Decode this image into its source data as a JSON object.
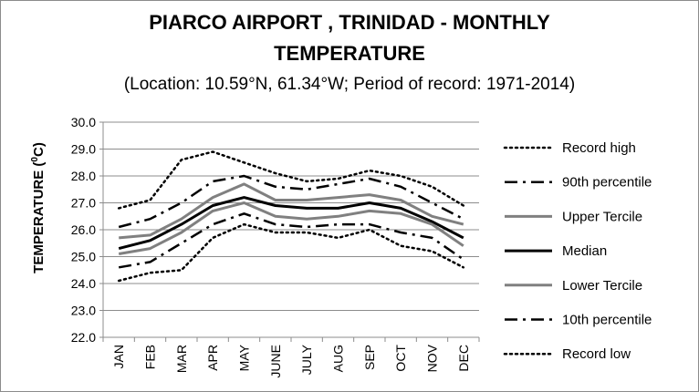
{
  "chart_data": {
    "type": "line",
    "title_line1": "PIARCO AIRPORT , TRINIDAD - MONTHLY",
    "title_line2": "TEMPERATURE",
    "subtitle": "(Location: 10.59°N, 61.34°W; Period of record: 1971-2014)",
    "ylabel_main": "TEMPERATURE (",
    "ylabel_sup": "0",
    "ylabel_end": "C)",
    "xlabel": "",
    "ylim": [
      22.0,
      30.0
    ],
    "yticks": [
      "22.0",
      "23.0",
      "24.0",
      "25.0",
      "26.0",
      "27.0",
      "28.0",
      "29.0",
      "30.0"
    ],
    "grid": true,
    "legend_position": "right",
    "categories": [
      "JAN",
      "FEB",
      "MAR",
      "APR",
      "MAY",
      "JUNE",
      "JULY",
      "AUG",
      "SEP",
      "OCT",
      "NOV",
      "DEC"
    ],
    "series": [
      {
        "name": "Record high",
        "style": "dotted",
        "color": "#000000",
        "values": [
          26.8,
          27.1,
          28.6,
          28.9,
          28.5,
          28.1,
          27.8,
          27.9,
          28.2,
          28.0,
          27.6,
          26.9
        ]
      },
      {
        "name": "90th percentile",
        "style": "dashdot",
        "color": "#000000",
        "values": [
          26.1,
          26.4,
          27.0,
          27.8,
          28.0,
          27.6,
          27.5,
          27.7,
          27.9,
          27.6,
          27.0,
          26.4
        ]
      },
      {
        "name": "Upper Tercile",
        "style": "solid",
        "color": "#808080",
        "values": [
          25.7,
          25.8,
          26.4,
          27.2,
          27.7,
          27.1,
          27.1,
          27.2,
          27.3,
          27.1,
          26.5,
          26.2
        ]
      },
      {
        "name": "Median",
        "style": "solid",
        "color": "#000000",
        "values": [
          25.3,
          25.6,
          26.2,
          26.9,
          27.2,
          26.9,
          26.8,
          26.8,
          27.0,
          26.8,
          26.3,
          25.7
        ]
      },
      {
        "name": "Lower Tercile",
        "style": "solid",
        "color": "#808080",
        "values": [
          25.1,
          25.3,
          25.9,
          26.7,
          27.0,
          26.5,
          26.4,
          26.5,
          26.7,
          26.6,
          26.2,
          25.4
        ]
      },
      {
        "name": "10th percentile",
        "style": "dashdot",
        "color": "#000000",
        "values": [
          24.6,
          24.8,
          25.5,
          26.2,
          26.6,
          26.2,
          26.1,
          26.2,
          26.2,
          25.9,
          25.7,
          24.9
        ]
      },
      {
        "name": "Record low",
        "style": "dotted",
        "color": "#000000",
        "values": [
          24.1,
          24.4,
          24.5,
          25.7,
          26.2,
          25.9,
          25.9,
          25.7,
          26.0,
          25.4,
          25.2,
          24.6
        ]
      }
    ]
  }
}
